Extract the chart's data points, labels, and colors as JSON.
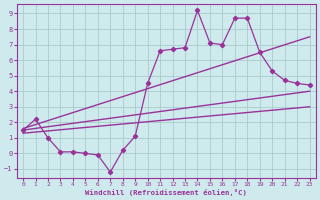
{
  "bg_color": "#ceeaec",
  "grid_color": "#aacccc",
  "line_color": "#993399",
  "xlim": [
    -0.5,
    23.5
  ],
  "ylim": [
    -1.6,
    9.6
  ],
  "xticks": [
    0,
    1,
    2,
    3,
    4,
    5,
    6,
    7,
    8,
    9,
    10,
    11,
    12,
    13,
    14,
    15,
    16,
    17,
    18,
    19,
    20,
    21,
    22,
    23
  ],
  "yticks": [
    -1,
    0,
    1,
    2,
    3,
    4,
    5,
    6,
    7,
    8,
    9
  ],
  "xlabel": "Windchill (Refroidissement éolien,°C)",
  "zigzag_x": [
    0,
    1,
    2,
    3,
    4,
    5,
    6,
    7,
    8,
    9,
    10,
    11,
    12,
    13,
    14,
    15,
    16,
    17,
    18,
    19,
    20,
    21,
    22,
    23
  ],
  "zigzag_y": [
    1.5,
    2.2,
    1.0,
    0.1,
    0.1,
    0.0,
    -0.1,
    -1.2,
    0.2,
    1.1,
    4.5,
    6.6,
    6.7,
    6.8,
    9.2,
    7.1,
    7.0,
    8.7,
    8.7,
    6.5,
    5.3,
    4.7,
    4.5,
    4.4
  ],
  "trend1_x": [
    0,
    23
  ],
  "trend1_y": [
    1.6,
    7.5
  ],
  "trend2_x": [
    0,
    23
  ],
  "trend2_y": [
    1.5,
    4.0
  ],
  "trend3_x": [
    0,
    23
  ],
  "trend3_y": [
    1.3,
    3.0
  ]
}
